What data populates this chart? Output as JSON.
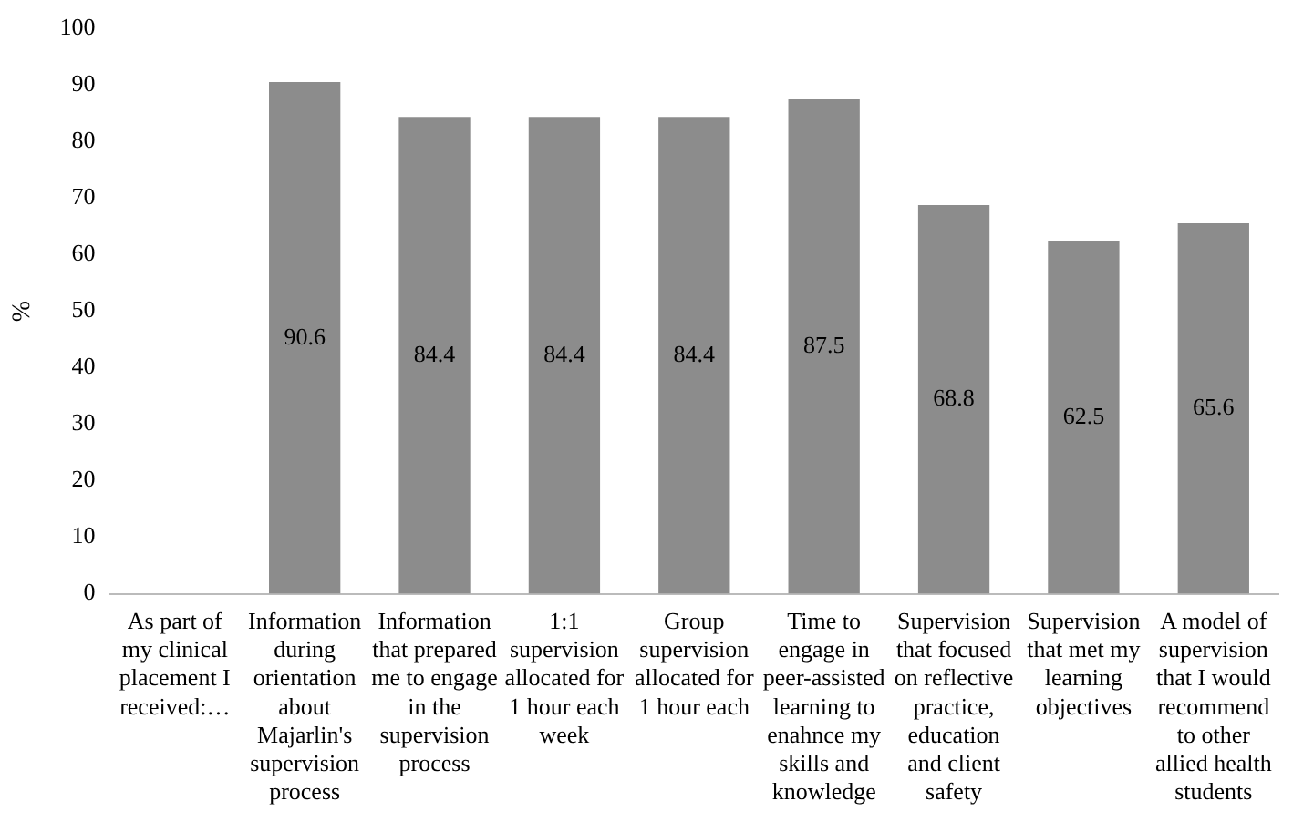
{
  "chart_data": {
    "type": "bar",
    "ylabel": "%",
    "categories": [
      "As part of my clinical placement I received:…",
      "Information during orientation about Majarlin's supervision process",
      "Information that prepared me to engage in the supervision process",
      "1:1 supervision allocated for 1 hour each week",
      "Group supervision allocated for 1 hour each",
      "Time to engage in peer-assisted learning to enahnce my skills and knowledge",
      "Supervision that focused on reflective practice, education and client safety",
      "Supervision that met my learning objectives",
      "A model of supervision that I would recommend to other allied health students"
    ],
    "values": [
      null,
      90.6,
      84.4,
      84.4,
      84.4,
      87.5,
      68.8,
      62.5,
      65.6
    ],
    "color": "#8c8c8c",
    "ylim": [
      0,
      100
    ],
    "yticks": [
      0,
      10,
      20,
      30,
      40,
      50,
      60,
      70,
      80,
      90,
      100
    ],
    "grid": false,
    "data_labels": true
  }
}
